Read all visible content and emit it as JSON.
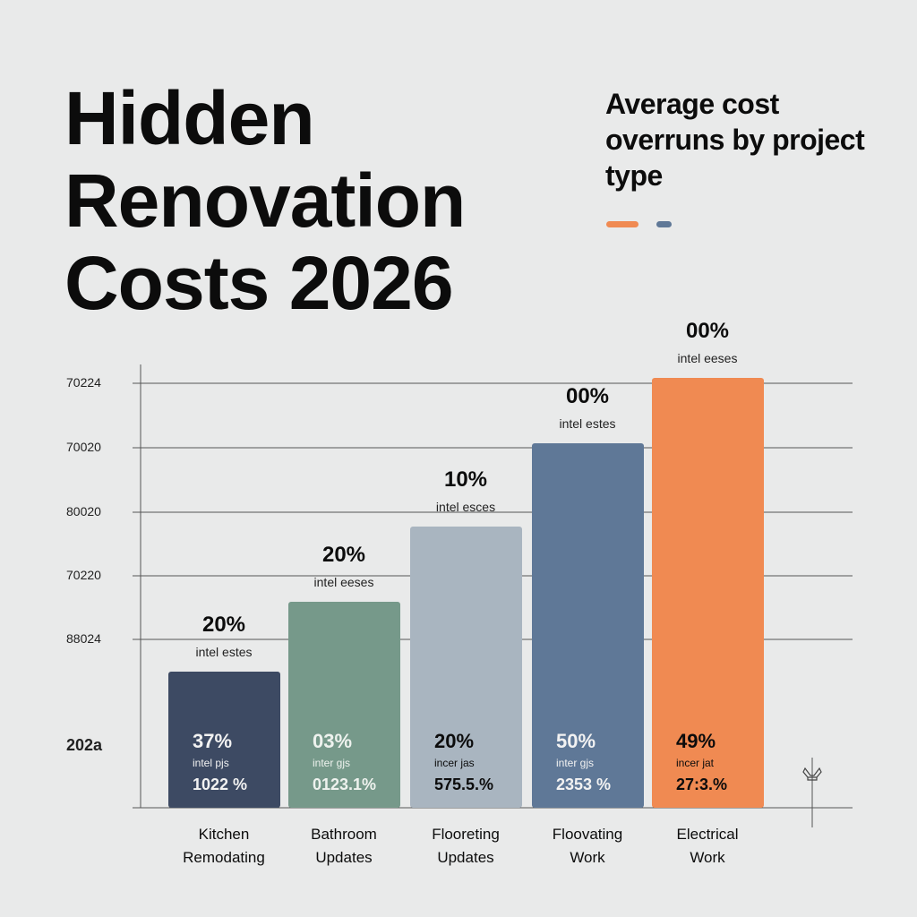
{
  "chart_data": {
    "type": "bar",
    "title": "Hidden Renovation Costs 2026",
    "subtitle": "Average cost overruns by project type",
    "legend_colors": [
      "#f08a52",
      "#5f7897"
    ],
    "yticks": [
      "70224",
      "70020",
      "80020",
      "70220",
      "88024",
      "202a"
    ],
    "ylim": [
      0,
      100
    ],
    "categories": [
      "Kitchen\nRemodating",
      "Bathroom\nUpdates",
      "Flooreting\nUpdates",
      "Floovating\nWork",
      "Electrical\nWork"
    ],
    "values": [
      31,
      47,
      64,
      83,
      98
    ],
    "colors": [
      "#3d4a63",
      "#76998a",
      "#a9b5c0",
      "#5f7897",
      "#f08a52"
    ],
    "top_labels": [
      "20%",
      "20%",
      "10%",
      "00%",
      "00%"
    ],
    "top_sublabels": [
      "intel estes",
      "intel eeses",
      "intel esces",
      "intel estes",
      "intel eeses"
    ],
    "inner_big": [
      "37%",
      "03%",
      "20%",
      "50%",
      "49%"
    ],
    "inner_small": [
      "intel pjs",
      "inter gjs",
      "incer jas",
      "inter gjs",
      "incer jat"
    ],
    "inner_mid": [
      "1022 %",
      "0123.1%",
      "575.5.%",
      "2353 %",
      "27:3.%"
    ],
    "inner_text_colors": [
      "#f2f2f2",
      "#eef2ee",
      "#0c0c0c",
      "#f2f2f2",
      "#0c0c0c"
    ]
  }
}
